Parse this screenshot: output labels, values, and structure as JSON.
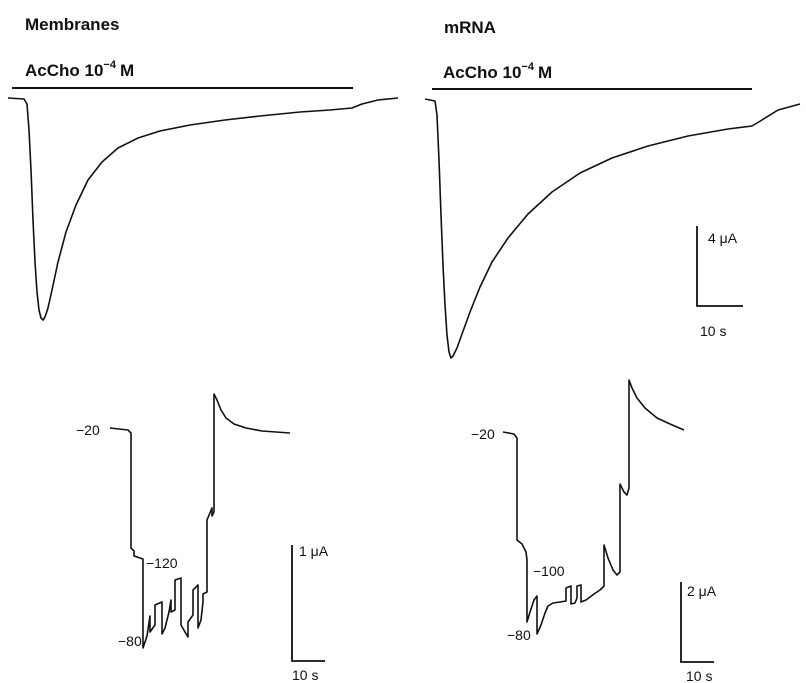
{
  "left": {
    "title": "Membranes",
    "agonist_label": "AcCho 10",
    "agonist_exp": "−4",
    "agonist_unit": "M",
    "holding_label": "−20",
    "step_label_a": "−120",
    "step_label_b": "−80",
    "scale_current": "1 μA",
    "scale_time": "10 s"
  },
  "right": {
    "title": "mRNA",
    "agonist_label": "AcCho 10",
    "agonist_exp": "−4",
    "agonist_unit": "M",
    "scale_current_top": "4 μA",
    "scale_time_top": "10 s",
    "holding_label": "−20",
    "step_label_a": "−100",
    "step_label_b": "−80",
    "scale_current": "2 μA",
    "scale_time": "10 s"
  }
}
